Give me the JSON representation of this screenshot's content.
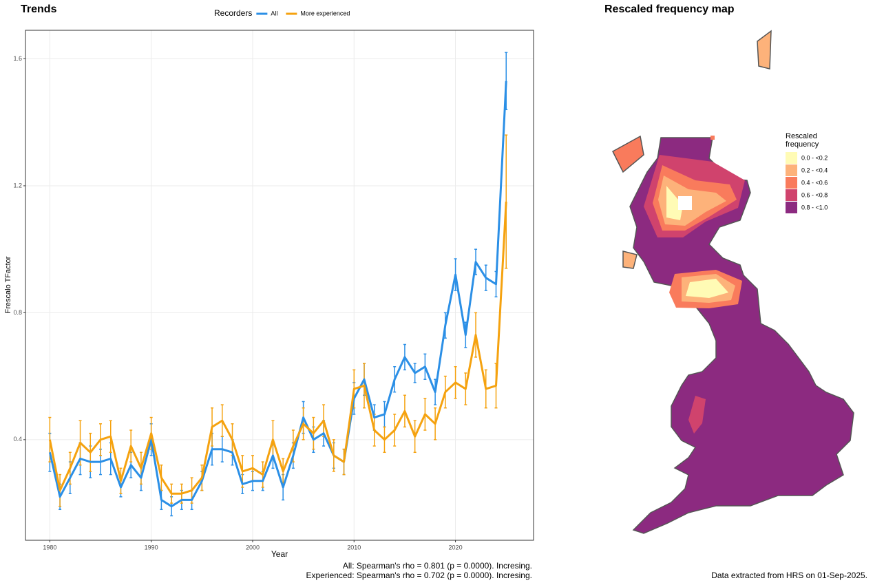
{
  "chart_data": [
    {
      "type": "line",
      "title": "Trends",
      "legend_title": "Recorders",
      "legend": "top",
      "xlabel": "Year",
      "ylabel": "Frescalo TFactor",
      "grid": true,
      "x": [
        1980,
        1981,
        1982,
        1983,
        1984,
        1985,
        1986,
        1987,
        1988,
        1989,
        1990,
        1991,
        1992,
        1993,
        1994,
        1995,
        1996,
        1997,
        1998,
        1999,
        2000,
        2001,
        2002,
        2003,
        2004,
        2005,
        2006,
        2007,
        2008,
        2009,
        2010,
        2011,
        2012,
        2013,
        2014,
        2015,
        2016,
        2017,
        2018,
        2019,
        2020,
        2021,
        2022,
        2023,
        2024,
        2025
      ],
      "xlim": [
        1977.6,
        2027.7
      ],
      "xticks": [
        1980,
        1990,
        2000,
        2010,
        2020
      ],
      "ylim": [
        0.083,
        1.69
      ],
      "yticks": [
        0.4,
        0.8,
        1.2,
        1.6
      ],
      "series": [
        {
          "name": "All",
          "color": "#2b8fe6",
          "values": [
            0.36,
            0.22,
            0.28,
            0.34,
            0.33,
            0.33,
            0.34,
            0.25,
            0.32,
            0.28,
            0.4,
            0.21,
            0.19,
            0.21,
            0.21,
            0.27,
            0.37,
            0.37,
            0.36,
            0.26,
            0.27,
            0.27,
            0.35,
            0.25,
            0.35,
            0.47,
            0.4,
            0.42,
            0.35,
            0.33,
            0.53,
            0.59,
            0.47,
            0.48,
            0.59,
            0.66,
            0.61,
            0.63,
            0.55,
            0.76,
            0.92,
            0.73,
            0.96,
            0.91,
            0.89,
            1.53
          ],
          "errors": [
            0.06,
            0.04,
            0.05,
            0.05,
            0.05,
            0.04,
            0.05,
            0.03,
            0.04,
            0.04,
            0.05,
            0.03,
            0.03,
            0.03,
            0.03,
            0.03,
            0.05,
            0.04,
            0.04,
            0.03,
            0.03,
            0.03,
            0.04,
            0.04,
            0.04,
            0.05,
            0.04,
            0.04,
            0.04,
            0.04,
            0.05,
            0.05,
            0.04,
            0.04,
            0.04,
            0.04,
            0.03,
            0.04,
            0.04,
            0.04,
            0.05,
            0.04,
            0.04,
            0.04,
            0.04,
            0.09
          ]
        },
        {
          "name": "More experienced",
          "color": "#f5a20f",
          "values": [
            0.4,
            0.24,
            0.31,
            0.39,
            0.36,
            0.4,
            0.41,
            0.27,
            0.38,
            0.31,
            0.42,
            0.28,
            0.23,
            0.23,
            0.24,
            0.28,
            0.44,
            0.46,
            0.4,
            0.3,
            0.31,
            0.29,
            0.4,
            0.3,
            0.38,
            0.45,
            0.42,
            0.46,
            0.35,
            0.33,
            0.56,
            0.57,
            0.43,
            0.4,
            0.43,
            0.49,
            0.41,
            0.48,
            0.45,
            0.55,
            0.58,
            0.56,
            0.73,
            0.56,
            0.57,
            1.15
          ],
          "errors": [
            0.07,
            0.05,
            0.05,
            0.07,
            0.06,
            0.05,
            0.05,
            0.04,
            0.05,
            0.05,
            0.05,
            0.04,
            0.03,
            0.03,
            0.04,
            0.04,
            0.06,
            0.05,
            0.05,
            0.05,
            0.04,
            0.04,
            0.06,
            0.04,
            0.05,
            0.05,
            0.05,
            0.05,
            0.05,
            0.04,
            0.06,
            0.07,
            0.05,
            0.04,
            0.05,
            0.05,
            0.05,
            0.05,
            0.05,
            0.05,
            0.05,
            0.05,
            0.07,
            0.06,
            0.07,
            0.21
          ]
        }
      ],
      "annotations": [
        "All: Spearman's rho = 0.801 (p = 0.0000). Incresing.",
        "Experienced: Spearman's rho = 0.702 (p = 0.0000). Incresing."
      ]
    },
    {
      "type": "map",
      "title": "Rescaled frequency map",
      "legend_title": "Rescaled frequency",
      "legend": [
        {
          "label": "0.0 - <0.2",
          "color": "#fffbb5"
        },
        {
          "label": "0.2 - <0.4",
          "color": "#fdb27a"
        },
        {
          "label": "0.4 - <0.6",
          "color": "#f97b5c"
        },
        {
          "label": "0.6 - <0.8",
          "color": "#d0436d"
        },
        {
          "label": "0.8 - <1.0",
          "color": "#8c2a80"
        }
      ],
      "annotation": "Data extracted from HRS on 01-Sep-2025."
    }
  ]
}
